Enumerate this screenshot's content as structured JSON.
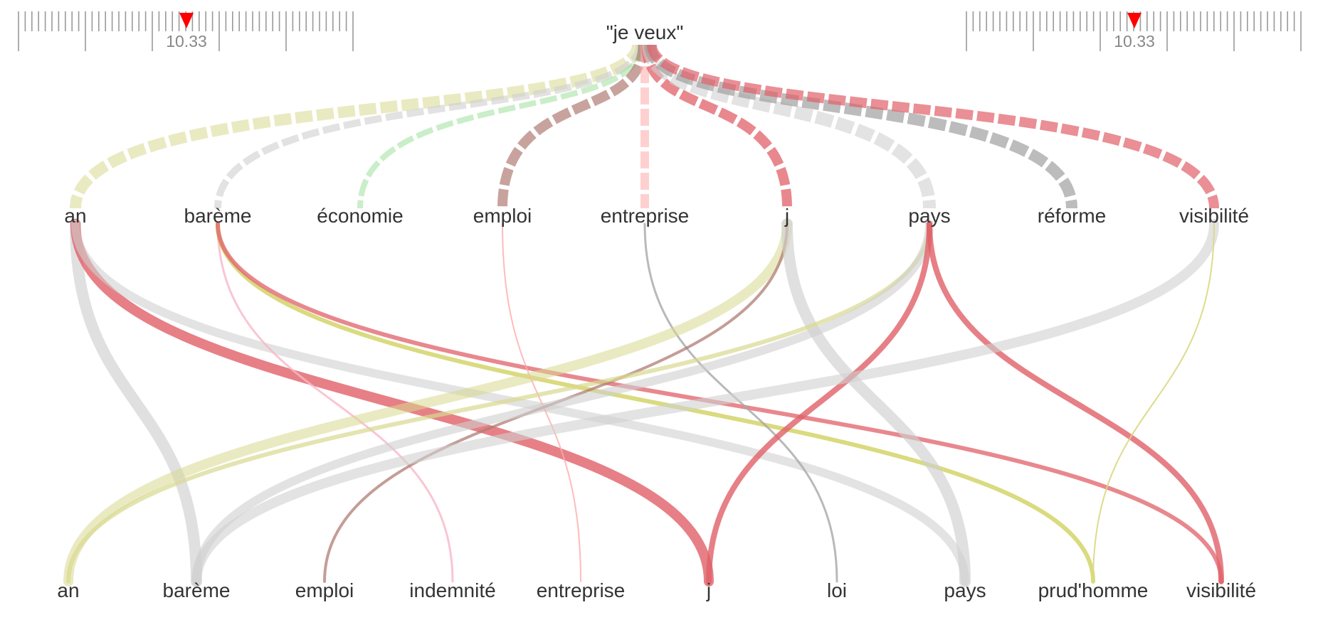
{
  "root": {
    "label": "\"je veux\""
  },
  "rulers": [
    {
      "id": "left",
      "value_label": "10.33",
      "marker_color": "#ff0000"
    },
    {
      "id": "right",
      "value_label": "10.33",
      "marker_color": "#ff0000"
    }
  ],
  "level1": [
    {
      "id": "an",
      "label": "an",
      "color": "#d8d890",
      "weight": 16,
      "opacity": 0.55
    },
    {
      "id": "bareme",
      "label": "barème",
      "color": "#cfcfcf",
      "weight": 10,
      "opacity": 0.6
    },
    {
      "id": "economie",
      "label": "économie",
      "color": "#9ee09a",
      "weight": 8,
      "opacity": 0.55
    },
    {
      "id": "emploi",
      "label": "emploi",
      "color": "#b07c74",
      "weight": 14,
      "opacity": 0.7
    },
    {
      "id": "entreprise",
      "label": "entreprise",
      "color": "#ffaaaa",
      "weight": 12,
      "opacity": 0.55
    },
    {
      "id": "j",
      "label": "j",
      "color": "#e06068",
      "weight": 14,
      "opacity": 0.75
    },
    {
      "id": "pays",
      "label": "pays",
      "color": "#d0d0d0",
      "weight": 18,
      "opacity": 0.6
    },
    {
      "id": "reforme",
      "label": "réforme",
      "color": "#a0a0a0",
      "weight": 16,
      "opacity": 0.7
    },
    {
      "id": "visibilite",
      "label": "visibilité",
      "color": "#e06068",
      "weight": 14,
      "opacity": 0.7
    }
  ],
  "level2": [
    {
      "id": "an",
      "label": "an"
    },
    {
      "id": "bareme",
      "label": "barème"
    },
    {
      "id": "emploi",
      "label": "emploi"
    },
    {
      "id": "indemnite",
      "label": "indemnité"
    },
    {
      "id": "entreprise",
      "label": "entreprise"
    },
    {
      "id": "j",
      "label": "j"
    },
    {
      "id": "loi",
      "label": "loi"
    },
    {
      "id": "pays",
      "label": "pays"
    },
    {
      "id": "prudhomme",
      "label": "prud'homme"
    },
    {
      "id": "visibilite",
      "label": "visibilité"
    }
  ],
  "links": [
    {
      "from": "an",
      "to": "bareme",
      "color": "#cfcfcf",
      "weight": 16,
      "opacity": 0.65
    },
    {
      "from": "an",
      "to": "j",
      "color": "#e06068",
      "weight": 14,
      "opacity": 0.8
    },
    {
      "from": "an",
      "to": "pays",
      "color": "#d0d0d0",
      "weight": 12,
      "opacity": 0.6
    },
    {
      "from": "bareme",
      "to": "indemnite",
      "color": "#f7b8c8",
      "weight": 3,
      "opacity": 0.8
    },
    {
      "from": "bareme",
      "to": "prudhomme",
      "color": "#d4d46a",
      "weight": 6,
      "opacity": 0.85
    },
    {
      "from": "bareme",
      "to": "visibilite",
      "color": "#e06068",
      "weight": 6,
      "opacity": 0.75
    },
    {
      "from": "emploi",
      "to": "entreprise",
      "color": "#ffaaaa",
      "weight": 2,
      "opacity": 0.8
    },
    {
      "from": "entreprise",
      "to": "loi",
      "color": "#a8a8a8",
      "weight": 3,
      "opacity": 0.8
    },
    {
      "from": "j",
      "to": "an",
      "color": "#d8d890",
      "weight": 14,
      "opacity": 0.55
    },
    {
      "from": "j",
      "to": "emploi",
      "color": "#b07c74",
      "weight": 4,
      "opacity": 0.75
    },
    {
      "from": "j",
      "to": "pays",
      "color": "#cfcfcf",
      "weight": 16,
      "opacity": 0.65
    },
    {
      "from": "pays",
      "to": "an",
      "color": "#d8d890",
      "weight": 6,
      "opacity": 0.7
    },
    {
      "from": "pays",
      "to": "bareme",
      "color": "#cfcfcf",
      "weight": 12,
      "opacity": 0.6
    },
    {
      "from": "pays",
      "to": "j",
      "color": "#e06068",
      "weight": 8,
      "opacity": 0.8
    },
    {
      "from": "pays",
      "to": "visibilite",
      "color": "#e06068",
      "weight": 8,
      "opacity": 0.8
    },
    {
      "from": "visibilite",
      "to": "bareme",
      "color": "#d0d0d0",
      "weight": 14,
      "opacity": 0.6
    },
    {
      "from": "visibilite",
      "to": "prudhomme",
      "color": "#d8d880",
      "weight": 2,
      "opacity": 0.9
    }
  ]
}
